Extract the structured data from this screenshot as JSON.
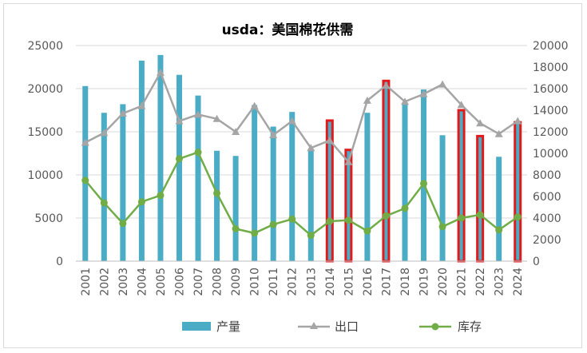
{
  "chart_data": {
    "type": "bar",
    "title": "usda：美国棉花供需",
    "categories": [
      "2001",
      "2002",
      "2003",
      "2004",
      "2005",
      "2006",
      "2007",
      "2008",
      "2009",
      "2010",
      "2011",
      "2012",
      "2013",
      "2014",
      "2015",
      "2016",
      "2017",
      "2018",
      "2019",
      "2020",
      "2021",
      "2022",
      "2023",
      "2024"
    ],
    "y_left": {
      "min": 0,
      "max": 25000,
      "ticks": [
        0,
        5000,
        10000,
        15000,
        20000,
        25000
      ]
    },
    "y_right": {
      "min": 0,
      "max": 20000,
      "ticks": [
        0,
        2000,
        4000,
        6000,
        8000,
        10000,
        12000,
        14000,
        16000,
        18000,
        20000
      ]
    },
    "series": [
      {
        "name": "产量",
        "type": "bar",
        "axis": "left",
        "color": "#4bacc6",
        "values": [
          20300,
          17200,
          18200,
          23250,
          23900,
          21600,
          19200,
          12800,
          12200,
          18100,
          15600,
          17300,
          13000,
          16300,
          12900,
          17200,
          20900,
          18400,
          19900,
          14600,
          17500,
          14500,
          12100,
          16100
        ]
      },
      {
        "name": "出口",
        "type": "line",
        "axis": "right",
        "color": "#a5a5a5",
        "marker": "triangle",
        "values": [
          11000,
          11900,
          13700,
          14400,
          17500,
          13000,
          13600,
          13200,
          12000,
          14400,
          11700,
          13000,
          10500,
          11200,
          9200,
          14900,
          16300,
          14800,
          15500,
          16400,
          14500,
          12800,
          11800,
          13000
        ]
      },
      {
        "name": "库存",
        "type": "line",
        "axis": "right",
        "color": "#70ad47",
        "marker": "circle",
        "values": [
          7500,
          5400,
          3500,
          5500,
          6100,
          9500,
          10100,
          6300,
          3000,
          2600,
          3400,
          3900,
          2400,
          3700,
          3800,
          2800,
          4200,
          4900,
          7200,
          3200,
          4000,
          4300,
          2900,
          4100
        ]
      }
    ],
    "highlighted_categories": [
      "2014",
      "2015",
      "2017",
      "2021",
      "2022",
      "2024"
    ],
    "highlight_color": "#e31a1c",
    "legend": {
      "position": "bottom",
      "entries": [
        "产量",
        "出口",
        "库存"
      ]
    }
  }
}
